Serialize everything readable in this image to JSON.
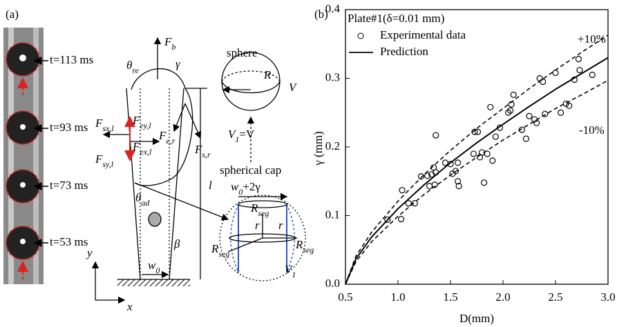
{
  "panel_a": {
    "label": "(a)",
    "times": [
      "t=113 ms",
      "t=93 ms",
      "t=73 ms",
      "t=53 ms"
    ],
    "labels": [
      {
        "text": "F",
        "sub": "b"
      },
      {
        "text": "θ",
        "sub": "re"
      },
      {
        "text": "γ"
      },
      {
        "text": "F",
        "sub": "sx,l"
      },
      {
        "text": "F",
        "sub": "ey,l"
      },
      {
        "text": "F",
        "sub": "ex,l"
      },
      {
        "text": "F",
        "sub": "sy,l"
      },
      {
        "text": "F",
        "sub": "e,r"
      },
      {
        "text": "F",
        "sub": "s,r"
      },
      {
        "text": "θ",
        "sub": "ad"
      },
      {
        "text": "l"
      },
      {
        "text": "β"
      },
      {
        "text": "w",
        "sub": "0"
      },
      {
        "text": "y"
      },
      {
        "text": "x"
      },
      {
        "text": "sphere"
      },
      {
        "text": "R"
      },
      {
        "text": "V"
      },
      {
        "text": "V",
        "sub": "1",
        "after": "=V"
      },
      {
        "text": "spherical cap"
      },
      {
        "text": "w",
        "sub": "0",
        "after": "+2γ"
      },
      {
        "text": "R",
        "sub": "seg"
      },
      {
        "text": "R",
        "sub": "seg"
      },
      {
        "text": "R",
        "sub": "seg"
      },
      {
        "text": "r"
      },
      {
        "text": "r"
      },
      {
        "text": "V",
        "sub": "1"
      }
    ]
  },
  "chart_data": {
    "type": "scatter",
    "panel_label": "(b)",
    "legend_title": "Plate#1(δ=0.01 mm)",
    "x_label": "D(mm)",
    "y_label": "γ (mm)",
    "annotations": [
      "+10%",
      "-10%"
    ],
    "xlim": [
      0.5,
      3.0
    ],
    "ylim": [
      0,
      0.4
    ],
    "xticks": [
      0.5,
      {
        "value": 1,
        "label": "1.0"
      },
      1.5,
      {
        "value": 2,
        "label": "2.0"
      },
      2.5,
      {
        "value": 3,
        "label": "3.0"
      }
    ],
    "yticks": [
      {
        "value": 0,
        "label": "0.0"
      },
      0.1,
      0.2,
      0.3,
      0.4
    ],
    "series": [
      {
        "name": "Experimental data",
        "mode": "markers",
        "color": "#000000",
        "x": [
          0.9,
          1.03,
          1.04,
          1.1,
          1.16,
          1.22,
          1.28,
          1.3,
          1.32,
          1.34,
          1.35,
          1.36,
          1.36,
          1.45,
          1.5,
          1.52,
          1.55,
          1.57,
          1.57,
          1.58,
          1.72,
          1.73,
          1.76,
          1.78,
          1.8,
          1.82,
          1.85,
          1.88,
          1.9,
          1.93,
          1.97,
          2.05,
          2.07,
          2.08,
          2.1,
          2.18,
          2.22,
          2.25,
          2.3,
          2.32,
          2.35,
          2.38,
          2.4,
          2.5,
          2.55,
          2.6,
          2.63,
          2.68,
          2.72,
          2.73,
          2.85
        ],
        "values": [
          0.094,
          0.095,
          0.137,
          0.118,
          0.118,
          0.157,
          0.158,
          0.143,
          0.16,
          0.17,
          0.145,
          0.217,
          0.163,
          0.177,
          0.175,
          0.161,
          0.165,
          0.177,
          0.15,
          0.143,
          0.19,
          0.222,
          0.222,
          0.185,
          0.192,
          0.148,
          0.19,
          0.258,
          0.18,
          0.215,
          0.228,
          0.25,
          0.253,
          0.262,
          0.276,
          0.225,
          0.212,
          0.245,
          0.24,
          0.235,
          0.3,
          0.295,
          0.248,
          0.308,
          0.25,
          0.263,
          0.26,
          0.298,
          0.328,
          0.312,
          0.305
        ]
      },
      {
        "name": "Prediction",
        "mode": "line",
        "dashed": false,
        "color": "#000000",
        "x": [
          0.5,
          0.6,
          0.75,
          1,
          1.25,
          1.5,
          1.75,
          2,
          2.25,
          2.5,
          2.75,
          3
        ],
        "values": [
          0,
          0.037,
          0.069,
          0.11,
          0.145,
          0.177,
          0.206,
          0.233,
          0.259,
          0.284,
          0.307,
          0.33
        ]
      },
      {
        "mode": "line",
        "dashed": true,
        "color": "#000000",
        "x": [
          0.5,
          0.6,
          0.75,
          1,
          1.25,
          1.5,
          1.75,
          2,
          2.25,
          2.5,
          2.75,
          3
        ],
        "values": [
          0,
          0.041,
          0.076,
          0.121,
          0.16,
          0.195,
          0.227,
          0.256,
          0.285,
          0.312,
          0.338,
          0.363
        ]
      },
      {
        "mode": "line",
        "dashed": true,
        "color": "#000000",
        "x": [
          0.5,
          0.6,
          0.75,
          1,
          1.25,
          1.5,
          1.75,
          2,
          2.25,
          2.5,
          2.75,
          3
        ],
        "values": [
          0,
          0.033,
          0.062,
          0.099,
          0.131,
          0.159,
          0.185,
          0.21,
          0.233,
          0.256,
          0.276,
          0.297
        ]
      }
    ]
  }
}
